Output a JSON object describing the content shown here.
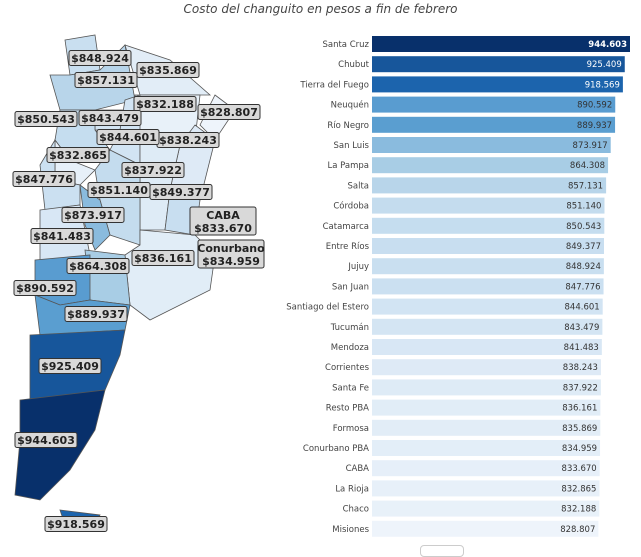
{
  "chart_data": [
    {
      "type": "bar",
      "orientation": "horizontal",
      "title": "Costo del changuito en pesos a fin de febrero",
      "categories": [
        "Santa Cruz",
        "Chubut",
        "Tierra del Fuego",
        "Neuquén",
        "Río Negro",
        "San Luis",
        "La Pampa",
        "Salta",
        "Córdoba",
        "Catamarca",
        "Entre Ríos",
        "Jujuy",
        "San Juan",
        "Santiago del Estero",
        "Tucumán",
        "Mendoza",
        "Corrientes",
        "Santa Fe",
        "Resto PBA",
        "Formosa",
        "Conurbano PBA",
        "CABA",
        "La Rioja",
        "Chaco",
        "Misiones"
      ],
      "values": [
        944603,
        925409,
        918569,
        890592,
        889937,
        873917,
        864308,
        857131,
        851140,
        850543,
        849377,
        848924,
        847776,
        844601,
        843479,
        841483,
        838243,
        837922,
        836161,
        835869,
        834959,
        833670,
        832865,
        832188,
        828807
      ],
      "value_labels": [
        "944.603",
        "925.409",
        "918.569",
        "890.592",
        "889.937",
        "873.917",
        "864.308",
        "857.131",
        "851.140",
        "850.543",
        "849.377",
        "848.924",
        "847.776",
        "844.601",
        "843.479",
        "841.483",
        "838.243",
        "837.922",
        "836.161",
        "835.869",
        "834.959",
        "833.670",
        "832.865",
        "832.188",
        "828.807"
      ],
      "color_scale": "Blues",
      "colors": {
        "min": "#eef4fb",
        "max": "#08306b"
      }
    },
    {
      "type": "choropleth",
      "labels": [
        {
          "region": "Jujuy",
          "text": "$848.924"
        },
        {
          "region": "Formosa",
          "text": "$835.869"
        },
        {
          "region": "Salta",
          "text": "$857.131"
        },
        {
          "region": "Chaco",
          "text": "$832.188"
        },
        {
          "region": "Misiones",
          "text": "$828.807"
        },
        {
          "region": "Catamarca",
          "text": "$850.543"
        },
        {
          "region": "Tucumán",
          "text": "$843.479"
        },
        {
          "region": "Corrientes",
          "text": "$838.243"
        },
        {
          "region": "Santiago del Estero",
          "text": "$844.601"
        },
        {
          "region": "La Rioja",
          "text": "$832.865"
        },
        {
          "region": "Santa Fe",
          "text": "$837.922"
        },
        {
          "region": "San Juan",
          "text": "$847.776"
        },
        {
          "region": "Córdoba",
          "text": "$851.140"
        },
        {
          "region": "Entre Ríos",
          "text": "$849.377"
        },
        {
          "region": "San Luis",
          "text": "$873.917"
        },
        {
          "region": "CABA",
          "name": "CABA",
          "text": "$833.670"
        },
        {
          "region": "Mendoza",
          "text": "$841.483"
        },
        {
          "region": "Conurbano PBA",
          "name": "Conurbano",
          "text": "$834.959"
        },
        {
          "region": "Resto PBA",
          "text": "$836.161"
        },
        {
          "region": "La Pampa",
          "text": "$864.308"
        },
        {
          "region": "Neuquén",
          "text": "$890.592"
        },
        {
          "region": "Río Negro",
          "text": "$889.937"
        },
        {
          "region": "Chubut",
          "text": "$925.409"
        },
        {
          "region": "Santa Cruz",
          "text": "$944.603"
        },
        {
          "region": "Tierra del Fuego",
          "text": "$918.569"
        }
      ]
    }
  ]
}
